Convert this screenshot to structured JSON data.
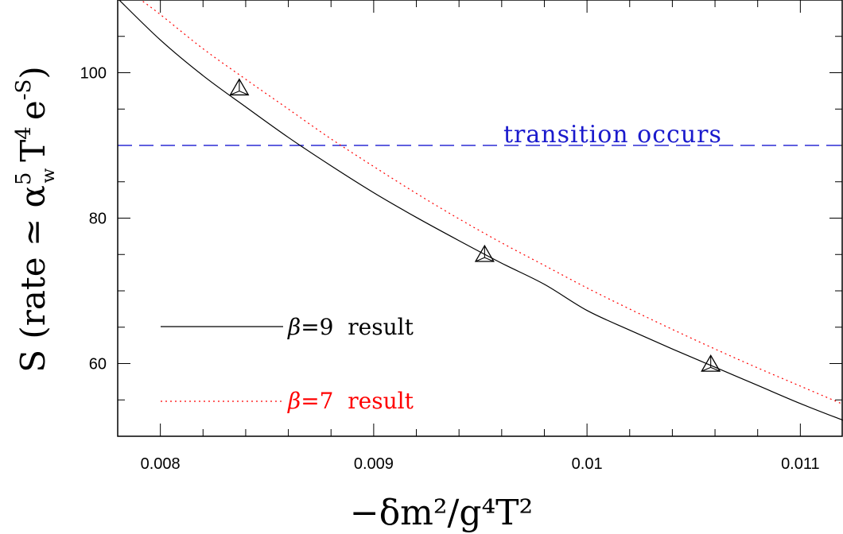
{
  "chart_data": {
    "type": "line",
    "xlabel": "−δm²/g⁴T²",
    "ylabel_main": "S (rate ≃ α",
    "ylabel_sup": "5",
    "ylabel_sub": "w",
    "ylabel_rest": "T",
    "ylabel_sup2": "4",
    "ylabel_end": "e",
    "ylabel_sup3": "-S",
    "ylabel_close": ")",
    "xlim": [
      0.0078,
      0.0112
    ],
    "ylim": [
      50,
      110
    ],
    "x_ticks": [
      {
        "value": 0.008,
        "label": "0.008"
      },
      {
        "value": 0.009,
        "label": "0.009"
      },
      {
        "value": 0.01,
        "label": "0.01"
      },
      {
        "value": 0.011,
        "label": "0.011"
      }
    ],
    "y_ticks": [
      {
        "value": 60,
        "label": "60"
      },
      {
        "value": 80,
        "label": "80"
      },
      {
        "value": 100,
        "label": "100"
      }
    ],
    "series": [
      {
        "name": "β=9 result",
        "color": "#000000",
        "style": "solid",
        "x": [
          0.0078,
          0.008,
          0.0082,
          0.0084,
          0.0086,
          0.0088,
          0.009,
          0.0092,
          0.0094,
          0.0096,
          0.0098,
          0.01,
          0.0102,
          0.0104,
          0.0106,
          0.0108,
          0.011,
          0.0112
        ],
        "y": [
          110.2,
          104.5,
          99.6,
          95.3,
          91.1,
          87.2,
          83.5,
          80.1,
          76.9,
          73.8,
          70.9,
          67.3,
          64.6,
          62.0,
          59.5,
          57.0,
          54.5,
          52.2
        ]
      },
      {
        "name": "β=7 result",
        "color": "#ff0000",
        "style": "dotted",
        "x": [
          0.0079,
          0.008,
          0.0082,
          0.0084,
          0.0086,
          0.0088,
          0.009,
          0.0092,
          0.0094,
          0.0096,
          0.0098,
          0.01,
          0.0102,
          0.0104,
          0.0106,
          0.0108,
          0.011,
          0.0112
        ],
        "y": [
          110.2,
          108.0,
          103.3,
          99.1,
          95.0,
          90.9,
          87.1,
          83.4,
          79.9,
          76.6,
          73.5,
          70.4,
          67.5,
          64.7,
          62.0,
          59.4,
          56.9,
          54.4
        ]
      }
    ],
    "points": [
      {
        "x": 0.00837,
        "y": 97.8
      },
      {
        "x": 0.00952,
        "y": 74.9
      },
      {
        "x": 0.01058,
        "y": 59.8
      }
    ],
    "hline": {
      "y": 90,
      "color": "#0000cc",
      "label": "transition occurs"
    },
    "legend": [
      {
        "symbol": "β",
        "text": "=9  result",
        "color": "#000000"
      },
      {
        "symbol": "β",
        "text": "=7  result",
        "color": "#ff0000"
      }
    ]
  }
}
